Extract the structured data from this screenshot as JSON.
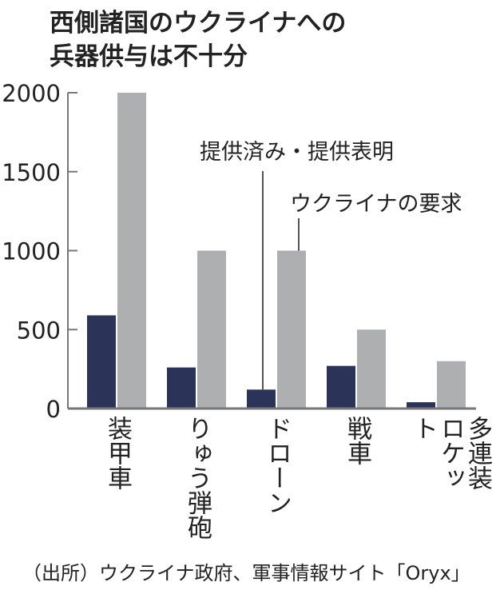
{
  "title": [
    "西側諸国のウクライナへの",
    "兵器供与は不十分"
  ],
  "source": "（出所）ウクライナ政府、軍事情報サイト「Oryx」",
  "chart_data": {
    "type": "bar",
    "categories": [
      "装甲車",
      "りゅう弾砲",
      "ドローン",
      "戦車",
      "多連装ロケット"
    ],
    "series": [
      {
        "name": "提供済み・提供表明",
        "color": "#2b3358",
        "values": [
          590,
          260,
          120,
          270,
          40
        ]
      },
      {
        "name": "ウクライナの要求",
        "color": "#adafb0",
        "values": [
          2000,
          1000,
          1000,
          500,
          300
        ]
      }
    ],
    "yticks": [
      "0",
      "500",
      "1000",
      "1500",
      "2000"
    ],
    "ylim": [
      0,
      2000
    ],
    "grid": false,
    "legend": "inline annotations"
  }
}
